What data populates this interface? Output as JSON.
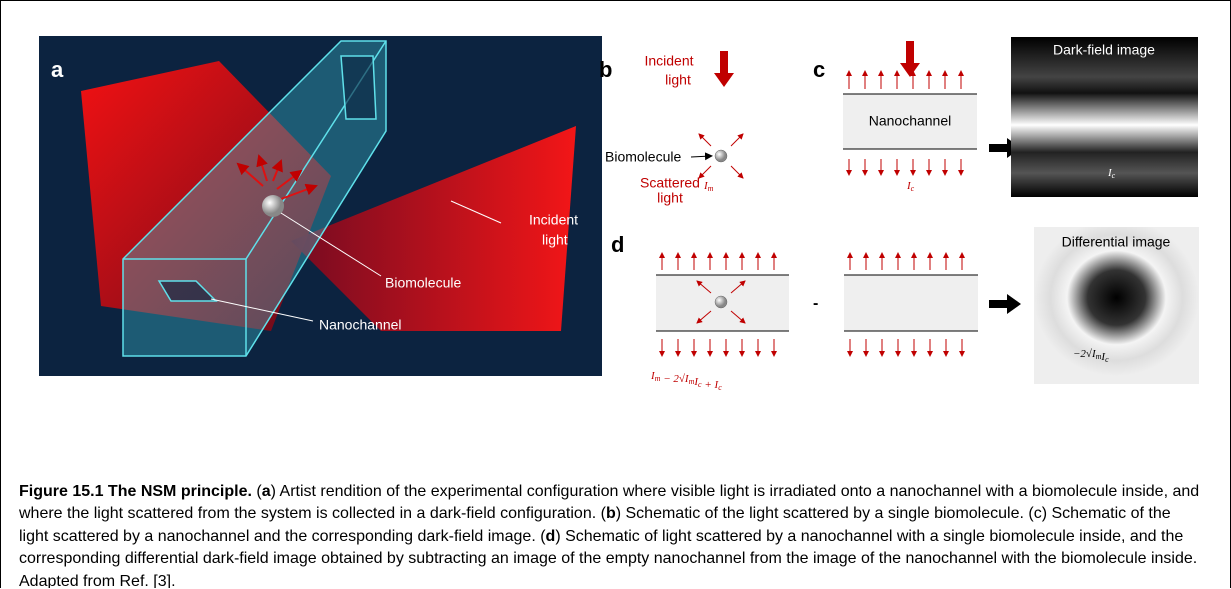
{
  "panel_a": {
    "label": "a",
    "incident": [
      "Incident",
      "light"
    ],
    "biomolecule": "Biomolecule",
    "nanochannel": "Nanochannel"
  },
  "panel_b": {
    "label": "b",
    "incident": [
      "Incident",
      "light"
    ],
    "biomolecule": "Biomolecule",
    "scattered": [
      "Scattered",
      "light"
    ],
    "intensity": {
      "base": "I",
      "sub": "m"
    }
  },
  "panel_c": {
    "label": "c",
    "nanochannel": "Nanochannel",
    "intensity": {
      "base": "I",
      "sub": "c"
    },
    "image_title": "Dark-field image",
    "image_intensity": {
      "base": "I",
      "sub": "c"
    }
  },
  "panel_d": {
    "label": "d",
    "minus": "-",
    "formula": [
      "I",
      "m",
      " − 2√",
      "I",
      "m",
      "I",
      "c",
      " + ",
      "I",
      "c"
    ],
    "image_title": "Differential image",
    "image_formula": [
      "−2√",
      "I",
      "m",
      "I",
      "c"
    ]
  },
  "caption": {
    "title": "Figure 15.1 The NSM principle.",
    "segments": [
      " (",
      "a",
      ") Artist rendition of the experimental configuration where visible light is irradiated onto a nanochannel with a biomolecule inside, and where the light scattered from the system is collected in a dark-field configuration. (",
      "b",
      ") Schematic of the light scattered by a single biomolecule. (c) Schematic of the light scattered by a nanochannel and the corresponding dark-field image. (",
      "d",
      ") Schematic of light scattered by a nanochannel with a single biomolecule inside, and the corresponding differential dark-field image obtained by subtracting an image of the empty nanochannel from the image of the nanochannel with the biomolecule inside. Adapted from Ref. [3]."
    ]
  }
}
